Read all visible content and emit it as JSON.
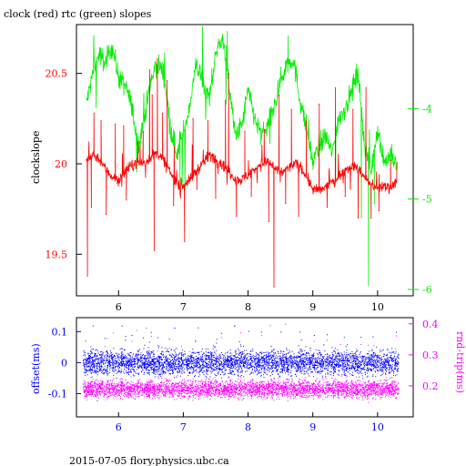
{
  "figure": {
    "title": "clock (red) rtc (green) slopes",
    "footer": "2015-07-05  flory.physics.ubc.ca",
    "colors": {
      "clock": "#ff0000",
      "rtc": "#00ee00",
      "offset": "#0000ff",
      "roundtrip": "#ff00ff",
      "axis": "#000000"
    }
  },
  "chart_data": [
    {
      "type": "line",
      "title": "clock (red) rtc (green) slopes",
      "xlim": [
        5.35,
        10.55
      ],
      "x_ticks": [
        6,
        7,
        8,
        9,
        10
      ],
      "x_tick_labels": [
        "6",
        "7",
        "8",
        "9",
        "10"
      ],
      "ylabel_left": "clockslope",
      "ylim_left": [
        19.27,
        20.77
      ],
      "y_ticks_left": [
        19.5,
        20,
        20.5
      ],
      "y_tick_labels_left": [
        "19.5",
        "20",
        "20.5"
      ],
      "ylim_right": [
        -6.07,
        -3.07
      ],
      "y_ticks_right": [
        -6,
        -5,
        -4
      ],
      "y_tick_labels_right": [
        "-6",
        "-5",
        "-4"
      ],
      "series": [
        {
          "name": "clock",
          "axis": "left",
          "color": "#ff0000",
          "x": [
            5.5,
            5.6,
            5.7,
            5.8,
            5.9,
            6.0,
            6.1,
            6.2,
            6.3,
            6.4,
            6.5,
            6.6,
            6.7,
            6.8,
            6.9,
            7.0,
            7.1,
            7.2,
            7.3,
            7.4,
            7.5,
            7.6,
            7.7,
            7.8,
            7.9,
            8.0,
            8.1,
            8.2,
            8.3,
            8.4,
            8.5,
            8.6,
            8.7,
            8.8,
            8.9,
            9.0,
            9.1,
            9.2,
            9.3,
            9.4,
            9.5,
            9.6,
            9.7,
            9.8,
            9.9,
            10.0,
            10.1,
            10.2,
            10.3
          ],
          "y": [
            20.02,
            20.05,
            20.03,
            19.97,
            19.93,
            19.91,
            19.96,
            19.99,
            20.01,
            20.0,
            20.04,
            20.06,
            20.02,
            19.95,
            19.9,
            19.88,
            19.91,
            19.96,
            20.0,
            20.05,
            20.03,
            20.0,
            19.96,
            19.92,
            19.91,
            19.94,
            19.97,
            20.0,
            20.01,
            19.98,
            19.95,
            19.97,
            20.0,
            19.99,
            19.93,
            19.86,
            19.85,
            19.87,
            19.9,
            19.93,
            19.97,
            19.99,
            19.97,
            19.93,
            19.88,
            19.86,
            19.88,
            19.87,
            19.91
          ],
          "spikes": [
            {
              "x": 5.52,
              "y": 19.38
            },
            {
              "x": 5.58,
              "y": 19.76
            },
            {
              "x": 5.62,
              "y": 20.28
            },
            {
              "x": 5.73,
              "y": 20.24
            },
            {
              "x": 5.81,
              "y": 19.72
            },
            {
              "x": 5.95,
              "y": 20.22
            },
            {
              "x": 6.08,
              "y": 20.21
            },
            {
              "x": 6.12,
              "y": 19.8
            },
            {
              "x": 6.3,
              "y": 20.12
            },
            {
              "x": 6.38,
              "y": 20.18
            },
            {
              "x": 6.48,
              "y": 20.52
            },
            {
              "x": 6.52,
              "y": 20.38
            },
            {
              "x": 6.55,
              "y": 19.52
            },
            {
              "x": 6.6,
              "y": 20.58
            },
            {
              "x": 6.68,
              "y": 20.28
            },
            {
              "x": 6.75,
              "y": 20.46
            },
            {
              "x": 6.85,
              "y": 19.77
            },
            {
              "x": 7.02,
              "y": 19.57
            },
            {
              "x": 7.15,
              "y": 20.25
            },
            {
              "x": 7.21,
              "y": 19.86
            },
            {
              "x": 7.38,
              "y": 20.24
            },
            {
              "x": 7.5,
              "y": 19.81
            },
            {
              "x": 7.65,
              "y": 20.35
            },
            {
              "x": 7.7,
              "y": 20.5
            },
            {
              "x": 7.82,
              "y": 19.71
            },
            {
              "x": 7.95,
              "y": 20.18
            },
            {
              "x": 8.05,
              "y": 19.82
            },
            {
              "x": 8.25,
              "y": 20.19
            },
            {
              "x": 8.32,
              "y": 19.68
            },
            {
              "x": 8.4,
              "y": 19.32
            },
            {
              "x": 8.48,
              "y": 20.38
            },
            {
              "x": 8.58,
              "y": 19.78
            },
            {
              "x": 8.67,
              "y": 20.3
            },
            {
              "x": 8.78,
              "y": 19.71
            },
            {
              "x": 8.9,
              "y": 20.24
            },
            {
              "x": 9.1,
              "y": 20.33
            },
            {
              "x": 9.22,
              "y": 19.76
            },
            {
              "x": 9.35,
              "y": 20.42
            },
            {
              "x": 9.5,
              "y": 19.82
            },
            {
              "x": 9.62,
              "y": 20.3
            },
            {
              "x": 9.7,
              "y": 19.7
            },
            {
              "x": 9.82,
              "y": 20.42
            },
            {
              "x": 9.9,
              "y": 19.7
            },
            {
              "x": 10.02,
              "y": 19.74
            },
            {
              "x": 10.12,
              "y": 19.85
            },
            {
              "x": 10.2,
              "y": 20.02
            },
            {
              "x": 10.25,
              "y": 19.89
            }
          ]
        },
        {
          "name": "rtc",
          "axis": "right",
          "color": "#00ee00",
          "x": [
            5.5,
            5.6,
            5.7,
            5.8,
            5.9,
            6.0,
            6.1,
            6.2,
            6.3,
            6.4,
            6.5,
            6.6,
            6.7,
            6.8,
            6.9,
            7.0,
            7.1,
            7.2,
            7.3,
            7.4,
            7.5,
            7.6,
            7.7,
            7.8,
            7.9,
            8.0,
            8.1,
            8.2,
            8.3,
            8.4,
            8.5,
            8.6,
            8.7,
            8.8,
            8.9,
            9.0,
            9.1,
            9.2,
            9.3,
            9.4,
            9.5,
            9.6,
            9.7,
            9.8,
            9.9,
            10.0,
            10.1,
            10.2,
            10.3
          ],
          "y": [
            -3.95,
            -3.62,
            -3.4,
            -3.5,
            -3.3,
            -3.65,
            -3.75,
            -3.95,
            -4.4,
            -4.1,
            -3.7,
            -3.5,
            -3.6,
            -4.2,
            -4.5,
            -4.3,
            -3.95,
            -3.5,
            -3.7,
            -3.9,
            -3.4,
            -3.2,
            -3.7,
            -4.3,
            -4.2,
            -3.8,
            -4.1,
            -4.3,
            -4.2,
            -4.0,
            -3.7,
            -3.5,
            -3.45,
            -3.9,
            -4.2,
            -4.6,
            -4.4,
            -4.3,
            -4.5,
            -4.1,
            -4.0,
            -3.8,
            -3.6,
            -4.4,
            -4.7,
            -4.2,
            -4.6,
            -4.5,
            -4.65
          ],
          "spikes": [
            {
              "x": 6.28,
              "y": -4.7
            },
            {
              "x": 6.95,
              "y": -4.8
            },
            {
              "x": 7.68,
              "y": -3.15
            },
            {
              "x": 8.62,
              "y": -3.2
            },
            {
              "x": 9.75,
              "y": -5.2
            },
            {
              "x": 9.86,
              "y": -5.95
            },
            {
              "x": 9.95,
              "y": -5.05
            }
          ]
        }
      ]
    },
    {
      "type": "scatter",
      "xlim": [
        5.35,
        10.55
      ],
      "x_ticks": [
        6,
        7,
        8,
        9,
        10
      ],
      "x_tick_labels": [
        "6",
        "7",
        "8",
        "9",
        "10"
      ],
      "ylabel_left": "offset(ms)",
      "ylim_left": [
        -0.175,
        0.145
      ],
      "y_ticks_left": [
        -0.1,
        0,
        0.1
      ],
      "y_tick_labels_left": [
        "-0.1",
        "0",
        "0.1"
      ],
      "ylabel_right": "rnd-trip(ms)",
      "ylim_right": [
        0.1,
        0.42
      ],
      "y_ticks_right": [
        0.2,
        0.3,
        0.4
      ],
      "y_tick_labels_right": [
        "0.2",
        "0.3",
        "0.4"
      ],
      "x_range_data": [
        5.45,
        10.32
      ],
      "series": [
        {
          "name": "offset",
          "axis": "left",
          "color": "#0000ff",
          "center": 0.0,
          "spread": 0.035,
          "outlier_max": 0.12,
          "outlier_min": -0.13
        },
        {
          "name": "round-trip",
          "axis": "right",
          "color": "#ff00ff",
          "center": 0.19,
          "spread": 0.025,
          "outlier_max": 0.4
        }
      ]
    }
  ]
}
